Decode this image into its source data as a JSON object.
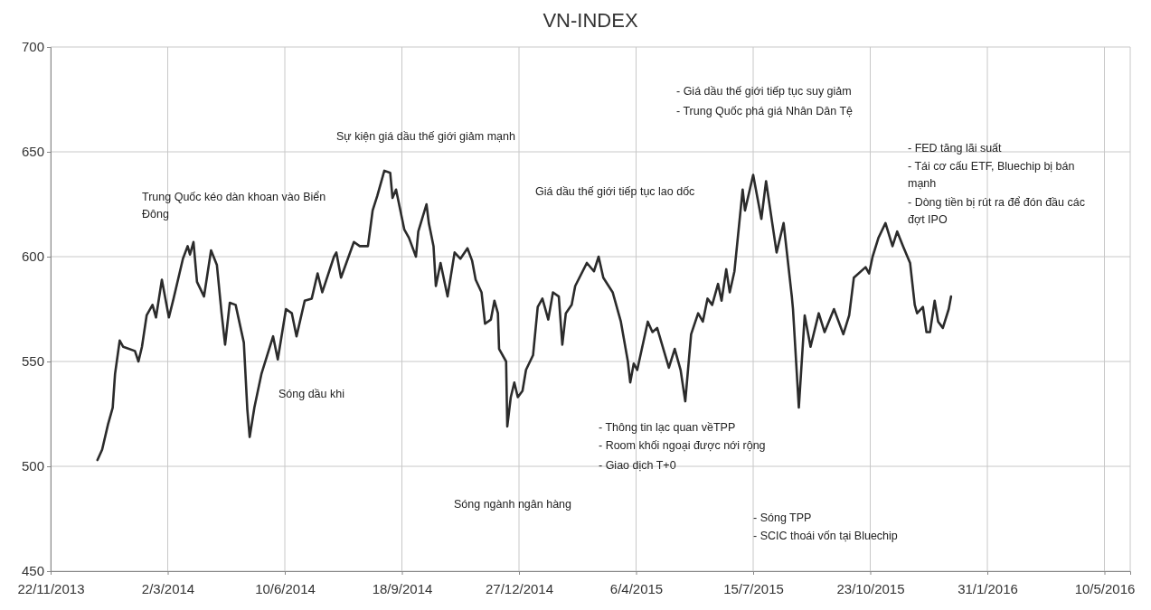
{
  "chart_data": {
    "type": "line",
    "title": "VN-INDEX",
    "x": [
      "2014-01-01",
      "2014-01-05",
      "2014-01-10",
      "2014-01-14",
      "2014-01-16",
      "2014-01-20",
      "2014-01-23",
      "2014-02-02",
      "2014-02-05",
      "2014-02-08",
      "2014-02-12",
      "2014-02-17",
      "2014-02-20",
      "2014-02-25",
      "2014-03-03",
      "2014-03-07",
      "2014-03-15",
      "2014-03-19",
      "2014-03-21",
      "2014-03-24",
      "2014-03-27",
      "2014-04-02",
      "2014-04-08",
      "2014-04-13",
      "2014-04-17",
      "2014-04-20",
      "2014-04-24",
      "2014-04-29",
      "2014-05-06",
      "2014-05-09",
      "2014-05-11",
      "2014-05-15",
      "2014-05-21",
      "2014-05-31",
      "2014-06-04",
      "2014-06-11",
      "2014-06-16",
      "2014-06-20",
      "2014-06-27",
      "2014-07-03",
      "2014-07-08",
      "2014-07-12",
      "2014-07-22",
      "2014-07-24",
      "2014-07-28",
      "2014-08-08",
      "2014-08-13",
      "2014-08-20",
      "2014-08-24",
      "2014-08-28",
      "2014-09-03",
      "2014-09-08",
      "2014-09-10",
      "2014-09-13",
      "2014-09-20",
      "2014-09-24",
      "2014-09-30",
      "2014-10-02",
      "2014-10-09",
      "2014-10-11",
      "2014-10-15",
      "2014-10-17",
      "2014-10-21",
      "2014-10-27",
      "2014-11-02",
      "2014-11-07",
      "2014-11-13",
      "2014-11-17",
      "2014-11-20",
      "2014-11-25",
      "2014-11-28",
      "2014-12-03",
      "2014-12-06",
      "2014-12-09",
      "2014-12-10",
      "2014-12-16",
      "2014-12-17",
      "2014-12-20",
      "2014-12-23",
      "2014-12-26",
      "2014-12-30",
      "2015-01-02",
      "2015-01-08",
      "2015-01-12",
      "2015-01-16",
      "2015-01-21",
      "2015-01-25",
      "2015-01-30",
      "2015-02-02",
      "2015-02-05",
      "2015-02-10",
      "2015-02-13",
      "2015-02-23",
      "2015-03-01",
      "2015-03-05",
      "2015-03-09",
      "2015-03-17",
      "2015-03-24",
      "2015-03-30",
      "2015-04-01",
      "2015-04-04",
      "2015-04-07",
      "2015-04-16",
      "2015-04-20",
      "2015-04-24",
      "2015-05-04",
      "2015-05-09",
      "2015-05-14",
      "2015-05-18",
      "2015-05-23",
      "2015-05-29",
      "2015-06-02",
      "2015-06-06",
      "2015-06-10",
      "2015-06-15",
      "2015-06-18",
      "2015-06-22",
      "2015-06-25",
      "2015-06-29",
      "2015-07-06",
      "2015-07-08",
      "2015-07-15",
      "2015-07-22",
      "2015-07-26",
      "2015-08-04",
      "2015-08-10",
      "2015-08-17",
      "2015-08-18",
      "2015-08-23",
      "2015-08-28",
      "2015-09-02",
      "2015-09-09",
      "2015-09-14",
      "2015-09-22",
      "2015-09-30",
      "2015-10-05",
      "2015-10-09",
      "2015-10-19",
      "2015-10-22",
      "2015-10-25",
      "2015-10-30",
      "2015-11-05",
      "2015-11-11",
      "2015-11-15",
      "2015-11-20",
      "2015-11-26",
      "2015-11-30",
      "2015-12-02",
      "2015-12-07",
      "2015-12-10",
      "2015-12-13",
      "2015-12-17",
      "2015-12-20",
      "2015-12-24",
      "2015-12-29",
      "2015-12-31"
    ],
    "series": [
      {
        "color": "#2b2b2b",
        "values": [
          503,
          508,
          520,
          528,
          544,
          560,
          557,
          555,
          550,
          557,
          572,
          577,
          571,
          589,
          571,
          580,
          599,
          605,
          601,
          607,
          588,
          581,
          603,
          596,
          573,
          558,
          578,
          577,
          559,
          527,
          514,
          528,
          544,
          562,
          551,
          575,
          573,
          562,
          579,
          580,
          592,
          583,
          600,
          602,
          590,
          607,
          605,
          605,
          622,
          629,
          641,
          640,
          628,
          632,
          613,
          609,
          600,
          612,
          625,
          616,
          605,
          586,
          597,
          581,
          602,
          599,
          604,
          598,
          589,
          583,
          568,
          570,
          579,
          573,
          556,
          550,
          519,
          533,
          540,
          533,
          536,
          546,
          553,
          576,
          580,
          570,
          583,
          581,
          558,
          573,
          577,
          586,
          597,
          593,
          600,
          590,
          583,
          569,
          550,
          540,
          549,
          546,
          569,
          564,
          566,
          547,
          556,
          546,
          531,
          563,
          573,
          569,
          580,
          577,
          587,
          579,
          594,
          583,
          593,
          632,
          622,
          639,
          618,
          636,
          602,
          616,
          581,
          575,
          528,
          572,
          557,
          573,
          564,
          575,
          563,
          572,
          590,
          595,
          592,
          600,
          609,
          616,
          605,
          612,
          605,
          597,
          577,
          573,
          576,
          564,
          564,
          579,
          569,
          566,
          575,
          581
        ]
      }
    ],
    "xlim": [
      "2013-11-22",
      "2016-06-01"
    ],
    "xticks": [
      {
        "value": "2013-11-22",
        "label": "22/11/2013"
      },
      {
        "value": "2014-03-02",
        "label": "2/3/2014"
      },
      {
        "value": "2014-06-10",
        "label": "10/6/2014"
      },
      {
        "value": "2014-09-18",
        "label": "18/9/2014"
      },
      {
        "value": "2014-12-27",
        "label": "27/12/2014"
      },
      {
        "value": "2015-04-06",
        "label": "6/4/2015"
      },
      {
        "value": "2015-07-15",
        "label": "15/7/2015"
      },
      {
        "value": "2015-10-23",
        "label": "23/10/2015"
      },
      {
        "value": "2016-01-31",
        "label": "31/1/2016"
      },
      {
        "value": "2016-05-10",
        "label": "10/5/2016"
      }
    ],
    "ylim": [
      450,
      700
    ],
    "yticks": [
      450,
      500,
      550,
      600,
      650,
      700
    ],
    "grid": true,
    "line_style": "solid",
    "marker": "none",
    "annotations": [
      "Trung Quốc kéo dàn khoan vào Biển Đông",
      "Sóng dầu khi",
      "Sự kiện giá dầu thế giới giảm mạnh",
      "Sóng ngành ngân hàng",
      "Giá dầu thế giới tiếp tục lao dốc",
      "- Thông tin lạc quan vềTPP",
      "- Room khối ngoại được nới rộng",
      "- Giao dịch T+0",
      "- Giá dầu thế giới tiếp tục suy giảm",
      "- Trung Quốc phá giá Nhân Dân Tệ",
      "- Sóng TPP",
      "- SCIC thoái vốn tại Bluechip",
      "- FED tăng lãi suất",
      "- Tái cơ cấu ETF, Bluechip bị bán mạnh",
      "- Dòng tiền bị rút ra để đón đầu các đợt IPO"
    ]
  }
}
